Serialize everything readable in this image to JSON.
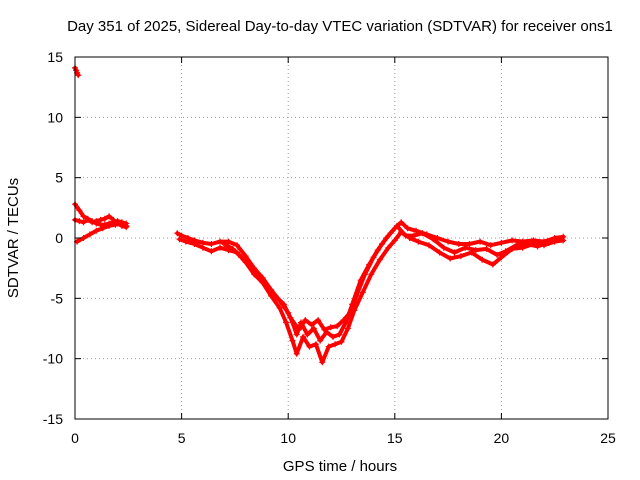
{
  "chart_data": {
    "type": "scatter",
    "title": "Day 351 of 2025, Sidereal Day-to-day VTEC variation (SDTVAR) for receiver ons1",
    "xlabel": "GPS time / hours",
    "ylabel": "SDTVAR / TECUs",
    "xlim": [
      0,
      25
    ],
    "ylim": [
      -15,
      15
    ],
    "xticks": [
      "0",
      "5",
      "10",
      "15",
      "20",
      "25"
    ],
    "yticks": [
      "-15",
      "-10",
      "-5",
      "0",
      "5",
      "10",
      "15"
    ],
    "grid": true,
    "marker": "plus",
    "series": [
      {
        "name": "SDTVAR",
        "color": "#ff0000",
        "tracks": [
          [
            [
              0.0,
              14.1
            ],
            [
              0.05,
              13.9
            ],
            [
              0.1,
              13.7
            ],
            [
              0.15,
              13.5
            ]
          ],
          [
            [
              0.0,
              2.8
            ],
            [
              0.2,
              2.3
            ],
            [
              0.4,
              1.8
            ],
            [
              0.6,
              1.6
            ],
            [
              0.8,
              1.4
            ],
            [
              1.0,
              1.2
            ],
            [
              1.2,
              1.1
            ],
            [
              1.4,
              1.1
            ],
            [
              1.6,
              1.2
            ],
            [
              1.8,
              1.3
            ],
            [
              2.0,
              1.4
            ],
            [
              2.2,
              1.3
            ],
            [
              2.4,
              1.2
            ]
          ],
          [
            [
              0.0,
              1.5
            ],
            [
              0.2,
              1.4
            ],
            [
              0.4,
              1.3
            ],
            [
              0.6,
              1.5
            ],
            [
              0.8,
              1.3
            ],
            [
              1.0,
              1.4
            ],
            [
              1.2,
              1.5
            ],
            [
              1.4,
              1.6
            ],
            [
              1.6,
              1.8
            ],
            [
              1.8,
              1.5
            ],
            [
              2.0,
              1.2
            ],
            [
              2.2,
              1.0
            ],
            [
              2.4,
              0.9
            ]
          ],
          [
            [
              0.1,
              -0.3
            ],
            [
              0.4,
              0.0
            ],
            [
              0.7,
              0.3
            ],
            [
              1.0,
              0.6
            ],
            [
              1.3,
              0.8
            ],
            [
              1.6,
              1.0
            ],
            [
              1.9,
              1.1
            ],
            [
              2.2,
              1.2
            ],
            [
              2.4,
              1.0
            ]
          ],
          [
            [
              4.8,
              0.4
            ],
            [
              5.0,
              0.2
            ],
            [
              5.3,
              0.0
            ],
            [
              5.6,
              -0.2
            ],
            [
              6.0,
              -0.4
            ],
            [
              6.4,
              -0.5
            ],
            [
              6.8,
              -0.3
            ],
            [
              7.2,
              -0.3
            ],
            [
              7.6,
              -0.6
            ],
            [
              8.0,
              -1.5
            ],
            [
              8.4,
              -2.5
            ],
            [
              8.8,
              -3.3
            ],
            [
              9.2,
              -4.3
            ],
            [
              9.6,
              -5.2
            ],
            [
              10.0,
              -6.2
            ],
            [
              10.2,
              -7.0
            ],
            [
              10.4,
              -8.0
            ],
            [
              10.6,
              -7.0
            ],
            [
              10.9,
              -8.0
            ],
            [
              11.2,
              -7.5
            ],
            [
              11.5,
              -8.5
            ],
            [
              11.8,
              -7.8
            ],
            [
              12.1,
              -8.2
            ],
            [
              12.4,
              -8.0
            ],
            [
              12.7,
              -7.0
            ],
            [
              13.0,
              -5.5
            ],
            [
              13.4,
              -3.5
            ],
            [
              13.8,
              -2.2
            ],
            [
              14.2,
              -1.0
            ],
            [
              14.6,
              0.0
            ],
            [
              15.0,
              0.8
            ],
            [
              15.3,
              1.3
            ],
            [
              15.6,
              0.8
            ],
            [
              16.0,
              0.6
            ],
            [
              16.5,
              0.3
            ],
            [
              17.0,
              0.0
            ],
            [
              17.5,
              -0.3
            ],
            [
              18.0,
              -0.5
            ],
            [
              18.5,
              -0.5
            ],
            [
              19.0,
              -0.3
            ],
            [
              19.5,
              -0.6
            ],
            [
              20.0,
              -0.4
            ],
            [
              20.5,
              -0.2
            ],
            [
              21.0,
              -0.3
            ],
            [
              21.5,
              -0.2
            ],
            [
              22.0,
              -0.3
            ],
            [
              22.5,
              0.0
            ],
            [
              22.9,
              0.1
            ]
          ],
          [
            [
              4.9,
              -0.1
            ],
            [
              5.2,
              -0.3
            ],
            [
              5.6,
              -0.5
            ],
            [
              6.0,
              -0.8
            ],
            [
              6.4,
              -1.1
            ],
            [
              6.8,
              -0.8
            ],
            [
              7.2,
              -1.0
            ],
            [
              7.6,
              -1.2
            ],
            [
              8.0,
              -2.0
            ],
            [
              8.4,
              -3.0
            ],
            [
              8.8,
              -3.7
            ],
            [
              9.2,
              -4.8
            ],
            [
              9.6,
              -5.8
            ],
            [
              9.9,
              -7.0
            ],
            [
              10.2,
              -8.5
            ],
            [
              10.4,
              -9.6
            ],
            [
              10.7,
              -8.2
            ],
            [
              11.0,
              -9.0
            ],
            [
              11.3,
              -8.8
            ],
            [
              11.6,
              -10.3
            ],
            [
              11.9,
              -9.0
            ],
            [
              12.2,
              -8.8
            ],
            [
              12.5,
              -8.6
            ],
            [
              12.8,
              -7.5
            ],
            [
              13.1,
              -6.0
            ],
            [
              13.5,
              -4.5
            ],
            [
              13.9,
              -3.0
            ],
            [
              14.3,
              -1.8
            ],
            [
              14.7,
              -0.8
            ],
            [
              15.0,
              -0.2
            ],
            [
              15.3,
              0.5
            ],
            [
              15.7,
              0.0
            ],
            [
              16.1,
              -0.3
            ],
            [
              16.6,
              -0.6
            ],
            [
              17.1,
              -1.2
            ],
            [
              17.6,
              -1.7
            ],
            [
              18.1,
              -1.5
            ],
            [
              18.6,
              -1.2
            ],
            [
              19.1,
              -1.8
            ],
            [
              19.6,
              -2.2
            ],
            [
              20.0,
              -1.6
            ],
            [
              20.5,
              -0.9
            ],
            [
              21.0,
              -0.8
            ],
            [
              21.5,
              -0.5
            ],
            [
              22.0,
              -0.6
            ],
            [
              22.5,
              -0.3
            ],
            [
              22.9,
              -0.2
            ]
          ],
          [
            [
              7.0,
              -0.5
            ],
            [
              7.4,
              -0.9
            ],
            [
              7.8,
              -1.6
            ],
            [
              8.2,
              -2.4
            ],
            [
              8.6,
              -3.0
            ],
            [
              9.0,
              -4.0
            ],
            [
              9.4,
              -4.8
            ],
            [
              9.8,
              -5.5
            ],
            [
              10.1,
              -6.6
            ],
            [
              10.5,
              -7.6
            ],
            [
              10.8,
              -6.8
            ],
            [
              11.1,
              -7.2
            ],
            [
              11.4,
              -6.8
            ],
            [
              11.7,
              -7.6
            ],
            [
              12.0,
              -7.4
            ],
            [
              12.3,
              -7.3
            ],
            [
              12.6,
              -6.8
            ],
            [
              12.9,
              -6.2
            ],
            [
              13.2,
              -4.8
            ],
            [
              13.6,
              -3.0
            ],
            [
              14.0,
              -1.6
            ],
            [
              14.4,
              -0.5
            ],
            [
              14.8,
              0.4
            ],
            [
              15.1,
              1.0
            ],
            [
              15.5,
              0.2
            ],
            [
              15.9,
              0.2
            ],
            [
              16.3,
              0.4
            ],
            [
              16.8,
              -0.1
            ],
            [
              17.3,
              -0.8
            ],
            [
              17.8,
              -1.2
            ],
            [
              18.3,
              -0.8
            ],
            [
              18.8,
              -1.0
            ],
            [
              19.3,
              -0.9
            ],
            [
              19.8,
              -1.4
            ],
            [
              20.2,
              -1.1
            ],
            [
              20.7,
              -0.6
            ],
            [
              21.2,
              -0.5
            ],
            [
              21.7,
              -0.7
            ],
            [
              22.2,
              -0.4
            ],
            [
              22.7,
              -0.1
            ]
          ]
        ]
      }
    ]
  }
}
